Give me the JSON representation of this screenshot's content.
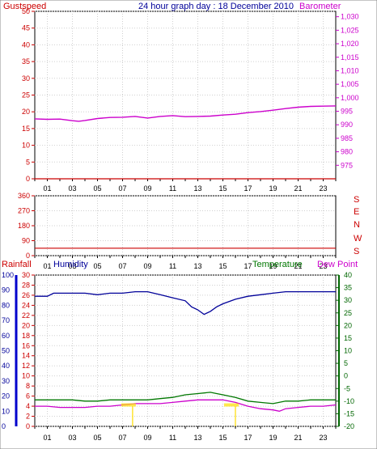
{
  "colors": {
    "red": "#cc0000",
    "magenta": "#cc00cc",
    "navy": "#000099",
    "green": "#007700",
    "darkgreen": "#006600",
    "blue": "#0000cc",
    "yellow": "#ffdd00",
    "grid": "#d0d0d0",
    "axis": "#000000"
  },
  "header": {
    "left_label": "Gustspeed",
    "title": "24 hour graph day : 18 December 2010",
    "right_label": "Barometer"
  },
  "wind_dir_letters": [
    "S",
    "E",
    "N",
    "W",
    "S"
  ],
  "legend_bottom": {
    "rainfall": "Rainfall",
    "humidity": "Humidity",
    "temperature": "Temperature",
    "dew_point": "Dew Point"
  },
  "x_ticks": [
    "01",
    "03",
    "05",
    "07",
    "09",
    "11",
    "13",
    "15",
    "17",
    "19",
    "21",
    "23"
  ],
  "chart_data": [
    {
      "type": "line",
      "title": "24 hour graph day : 18 December 2010",
      "left_axis": {
        "label": "Gustspeed",
        "ticks": [
          0,
          5,
          10,
          15,
          20,
          25,
          30,
          35,
          40,
          45,
          50
        ],
        "ylim": [
          0,
          50
        ]
      },
      "right_axis": {
        "label": "Barometer",
        "ticks": [
          975,
          980,
          985,
          990,
          995,
          1000,
          1005,
          1010,
          1015,
          1020,
          1025,
          1030
        ],
        "ylim": [
          970,
          1032
        ]
      },
      "grid": true,
      "series": [
        {
          "name": "Gustspeed",
          "axis": "left",
          "x": [
            0,
            24
          ],
          "y": [
            0,
            0
          ]
        },
        {
          "name": "Barometer",
          "axis": "right",
          "x": [
            0,
            1,
            2,
            3,
            3.5,
            4,
            5,
            6,
            7,
            8,
            9,
            10,
            11,
            12,
            13,
            14,
            15,
            16,
            17,
            18,
            19,
            20,
            21,
            22,
            23,
            24
          ],
          "y": [
            992.2,
            992.0,
            992.1,
            991.5,
            991.3,
            991.6,
            992.3,
            992.7,
            992.8,
            993.1,
            992.5,
            993.1,
            993.4,
            993.0,
            993.1,
            993.2,
            993.6,
            993.9,
            994.5,
            994.9,
            995.4,
            996.0,
            996.5,
            996.8,
            996.9,
            997.0
          ]
        }
      ]
    },
    {
      "type": "line",
      "left_axis": {
        "ticks": [
          0,
          90,
          180,
          270,
          360
        ],
        "ylim": [
          0,
          360
        ]
      },
      "right_axis": {
        "labels": [
          "S",
          "E",
          "N",
          "W",
          "S"
        ]
      },
      "grid": true,
      "series": [
        {
          "name": "Wind direction",
          "x": [
            0,
            24
          ],
          "y": [
            45,
            45
          ]
        }
      ]
    },
    {
      "type": "line",
      "left_axis": {
        "ticks": [
          0,
          10,
          20,
          30,
          40,
          50,
          60,
          70,
          80,
          90,
          100
        ],
        "ylim": [
          0,
          100
        ]
      },
      "mid_axis": {
        "ticks": [
          0,
          2,
          4,
          6,
          8,
          10,
          12,
          14,
          16,
          18,
          20,
          22,
          24,
          26,
          28,
          30
        ],
        "ylim": [
          0,
          30
        ]
      },
      "right_axis": {
        "ticks": [
          -20,
          -15,
          -10,
          -5,
          0,
          5,
          10,
          15,
          20,
          25,
          30,
          35,
          40
        ],
        "ylim": [
          -20,
          40
        ]
      },
      "grid": true,
      "series": [
        {
          "name": "Humidity",
          "axis": "left",
          "x": [
            0,
            1,
            1.5,
            2,
            3,
            4,
            5,
            6,
            7,
            8,
            9,
            10,
            11,
            12,
            12.5,
            13,
            13.5,
            14,
            14.5,
            15,
            16,
            17,
            18,
            19,
            20,
            21,
            22,
            23,
            24
          ],
          "y": [
            86,
            86,
            88,
            88,
            88,
            88,
            87,
            88,
            88,
            89,
            89,
            87,
            85,
            83,
            79,
            77,
            74,
            76,
            79,
            81,
            84,
            86,
            87,
            88,
            89,
            89,
            89,
            89,
            89
          ]
        },
        {
          "name": "Temperature",
          "axis": "right",
          "x": [
            0,
            1,
            2,
            3,
            4,
            5,
            6,
            7,
            8,
            9,
            10,
            11,
            12,
            13,
            14,
            14.5,
            15,
            16,
            17,
            18,
            19,
            20,
            21,
            22,
            23,
            24
          ],
          "y": [
            -9.5,
            -9.5,
            -9.5,
            -9.5,
            -10,
            -10,
            -9.5,
            -9.5,
            -9.5,
            -9.5,
            -9,
            -8.5,
            -7.5,
            -7,
            -6.5,
            -7,
            -7.5,
            -8.5,
            -10,
            -10.5,
            -11,
            -10,
            -10,
            -9.5,
            -9.5,
            -9.5
          ]
        },
        {
          "name": "Dew Point",
          "axis": "right",
          "x": [
            0,
            1,
            2,
            3,
            4,
            5,
            6,
            7,
            8,
            9,
            10,
            11,
            12,
            13,
            14,
            15,
            16,
            17,
            18,
            19,
            19.5,
            20,
            21,
            22,
            23,
            24
          ],
          "y": [
            -12,
            -12,
            -12.5,
            -12.5,
            -12.5,
            -12,
            -12,
            -11.5,
            -11,
            -11,
            -11,
            -10.5,
            -10,
            -9.5,
            -9.5,
            -9.5,
            -10.5,
            -12,
            -13,
            -13.5,
            -14,
            -13,
            -12.5,
            -12,
            -12,
            -11.5
          ]
        },
        {
          "name": "Rainfall",
          "axis": "mid",
          "x": [
            7.8,
            16.0
          ],
          "y": [
            0.2,
            0.2
          ]
        }
      ]
    }
  ]
}
